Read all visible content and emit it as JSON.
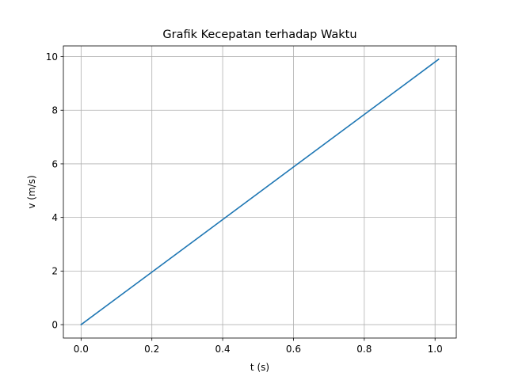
{
  "chart_data": {
    "type": "line",
    "title": "Grafik Kecepatan terhadap Waktu",
    "xlabel": "t (s)",
    "ylabel": "v (m/s)",
    "xlim": [
      -0.05,
      1.06
    ],
    "ylim": [
      -0.5,
      10.4
    ],
    "xticks": [
      0.0,
      0.2,
      0.4,
      0.6,
      0.8,
      1.0
    ],
    "xtick_labels": [
      "0.0",
      "0.2",
      "0.4",
      "0.6",
      "0.8",
      "1.0"
    ],
    "yticks": [
      0,
      2,
      4,
      6,
      8,
      10
    ],
    "ytick_labels": [
      "0",
      "2",
      "4",
      "6",
      "8",
      "10"
    ],
    "grid": true,
    "series": [
      {
        "color": "#1f77b4",
        "x": [
          0.0,
          1.01
        ],
        "y": [
          0.0,
          9.9
        ]
      }
    ]
  }
}
